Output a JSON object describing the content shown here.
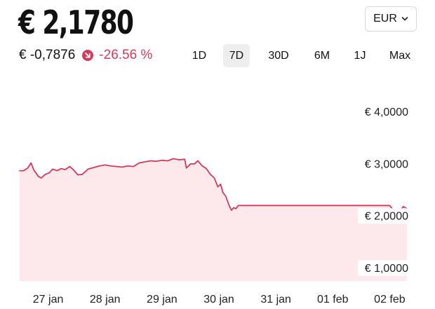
{
  "header": {
    "price": "€ 2,1780",
    "currency_selected": "EUR",
    "change_abs": "€ -0,7876",
    "change_pct": "-26.56 %",
    "change_icon": "arrow-down-right-icon"
  },
  "timeframes": [
    {
      "label": "1D",
      "active": false
    },
    {
      "label": "7D",
      "active": true
    },
    {
      "label": "30D",
      "active": false
    },
    {
      "label": "6M",
      "active": false
    },
    {
      "label": "1J",
      "active": false
    },
    {
      "label": "Max",
      "active": false
    }
  ],
  "colors": {
    "line": "#d23b5a",
    "fill": "#fde8ec",
    "negative": "#d23b5a"
  },
  "chart_data": {
    "type": "area",
    "y_ticks": [
      {
        "value": 4,
        "label": "€ 4,0000"
      },
      {
        "value": 3,
        "label": "€ 3,0000"
      },
      {
        "value": 2,
        "label": "€ 2,0000"
      },
      {
        "value": 1,
        "label": "€ 1,0000"
      }
    ],
    "x_ticks": [
      {
        "x": 0.5,
        "label": "27 jan"
      },
      {
        "x": 1.5,
        "label": "28 jan"
      },
      {
        "x": 2.5,
        "label": "29 jan"
      },
      {
        "x": 3.5,
        "label": "30 jan"
      },
      {
        "x": 4.5,
        "label": "31 jan"
      },
      {
        "x": 5.5,
        "label": "01 feb"
      },
      {
        "x": 6.5,
        "label": "02 feb"
      }
    ],
    "xlim": [
      0.0,
      7.0
    ],
    "ylim": [
      0.75,
      4.75
    ],
    "grid": false,
    "points": [
      [
        0.0,
        2.87
      ],
      [
        0.07,
        2.87
      ],
      [
        0.14,
        2.92
      ],
      [
        0.2,
        3.02
      ],
      [
        0.25,
        2.88
      ],
      [
        0.33,
        2.76
      ],
      [
        0.38,
        2.73
      ],
      [
        0.45,
        2.8
      ],
      [
        0.52,
        2.83
      ],
      [
        0.58,
        2.9
      ],
      [
        0.66,
        2.87
      ],
      [
        0.73,
        2.91
      ],
      [
        0.8,
        2.89
      ],
      [
        0.88,
        2.95
      ],
      [
        0.95,
        2.88
      ],
      [
        1.02,
        2.79
      ],
      [
        1.1,
        2.8
      ],
      [
        1.2,
        2.9
      ],
      [
        1.3,
        2.93
      ],
      [
        1.4,
        2.96
      ],
      [
        1.5,
        2.98
      ],
      [
        1.6,
        2.96
      ],
      [
        1.7,
        2.95
      ],
      [
        1.8,
        2.94
      ],
      [
        1.9,
        2.96
      ],
      [
        2.0,
        2.95
      ],
      [
        2.1,
        3.02
      ],
      [
        2.2,
        3.04
      ],
      [
        2.3,
        3.06
      ],
      [
        2.4,
        3.05
      ],
      [
        2.5,
        3.07
      ],
      [
        2.6,
        3.06
      ],
      [
        2.7,
        3.1
      ],
      [
        2.8,
        3.08
      ],
      [
        2.9,
        3.09
      ],
      [
        2.93,
        2.92
      ],
      [
        3.0,
        3.0
      ],
      [
        3.07,
        3.0
      ],
      [
        3.13,
        3.06
      ],
      [
        3.2,
        2.97
      ],
      [
        3.28,
        2.91
      ],
      [
        3.35,
        2.8
      ],
      [
        3.42,
        2.73
      ],
      [
        3.48,
        2.56
      ],
      [
        3.53,
        2.61
      ],
      [
        3.57,
        2.45
      ],
      [
        3.62,
        2.38
      ],
      [
        3.68,
        2.2
      ],
      [
        3.72,
        2.11
      ],
      [
        3.76,
        2.16
      ],
      [
        3.8,
        2.14
      ],
      [
        3.84,
        2.2
      ],
      [
        4.0,
        2.2
      ],
      [
        4.5,
        2.2
      ],
      [
        5.0,
        2.2
      ],
      [
        5.5,
        2.2
      ],
      [
        6.0,
        2.2
      ],
      [
        6.44,
        2.2
      ],
      [
        6.5,
        2.2
      ],
      [
        6.56,
        2.12
      ],
      [
        6.62,
        2.05
      ],
      [
        6.68,
        2.1
      ],
      [
        6.74,
        2.18
      ],
      [
        6.8,
        2.14
      ]
    ]
  }
}
